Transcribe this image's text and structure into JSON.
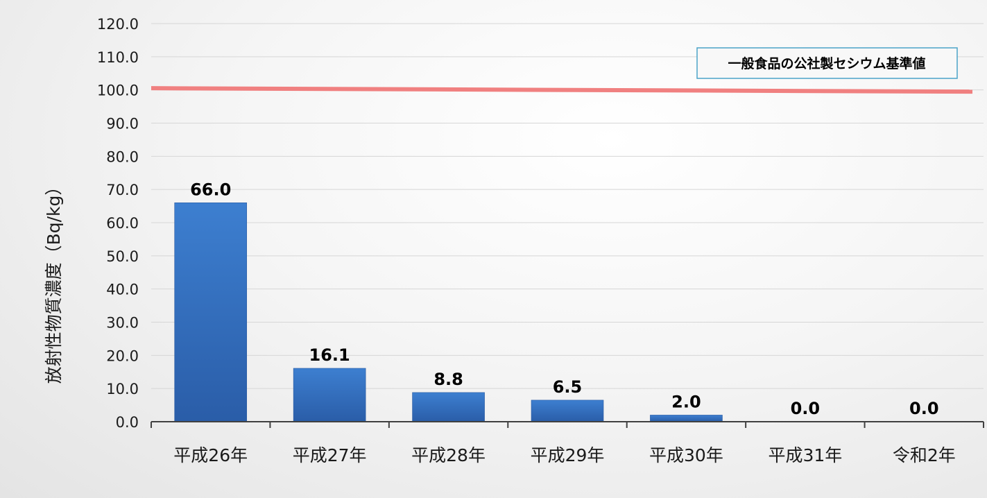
{
  "chart_data": {
    "type": "bar",
    "ylabel": "放射性物質濃度（Bq/kg）",
    "ylim": [
      0,
      120
    ],
    "y_ticks": [
      "0.0",
      "10.0",
      "20.0",
      "30.0",
      "40.0",
      "50.0",
      "60.0",
      "70.0",
      "80.0",
      "90.0",
      "100.0",
      "110.0",
      "120.0"
    ],
    "categories": [
      "平成26年",
      "平成27年",
      "平成28年",
      "平成29年",
      "平成30年",
      "平成31年",
      "令和2年"
    ],
    "values": [
      66.0,
      16.1,
      8.8,
      6.5,
      2.0,
      0.0,
      0.0
    ],
    "data_labels": [
      "66.0",
      "16.1",
      "8.8",
      "6.5",
      "2.0",
      "0.0",
      "0.0"
    ],
    "reference_line": {
      "value": 100,
      "label": "一般食品の公社製セシウム基準値",
      "color": "#f08080"
    },
    "bar_color_top": "#3d7fd0",
    "bar_color_bottom": "#2a5da8",
    "grid": true,
    "legend_position": "top-right"
  }
}
